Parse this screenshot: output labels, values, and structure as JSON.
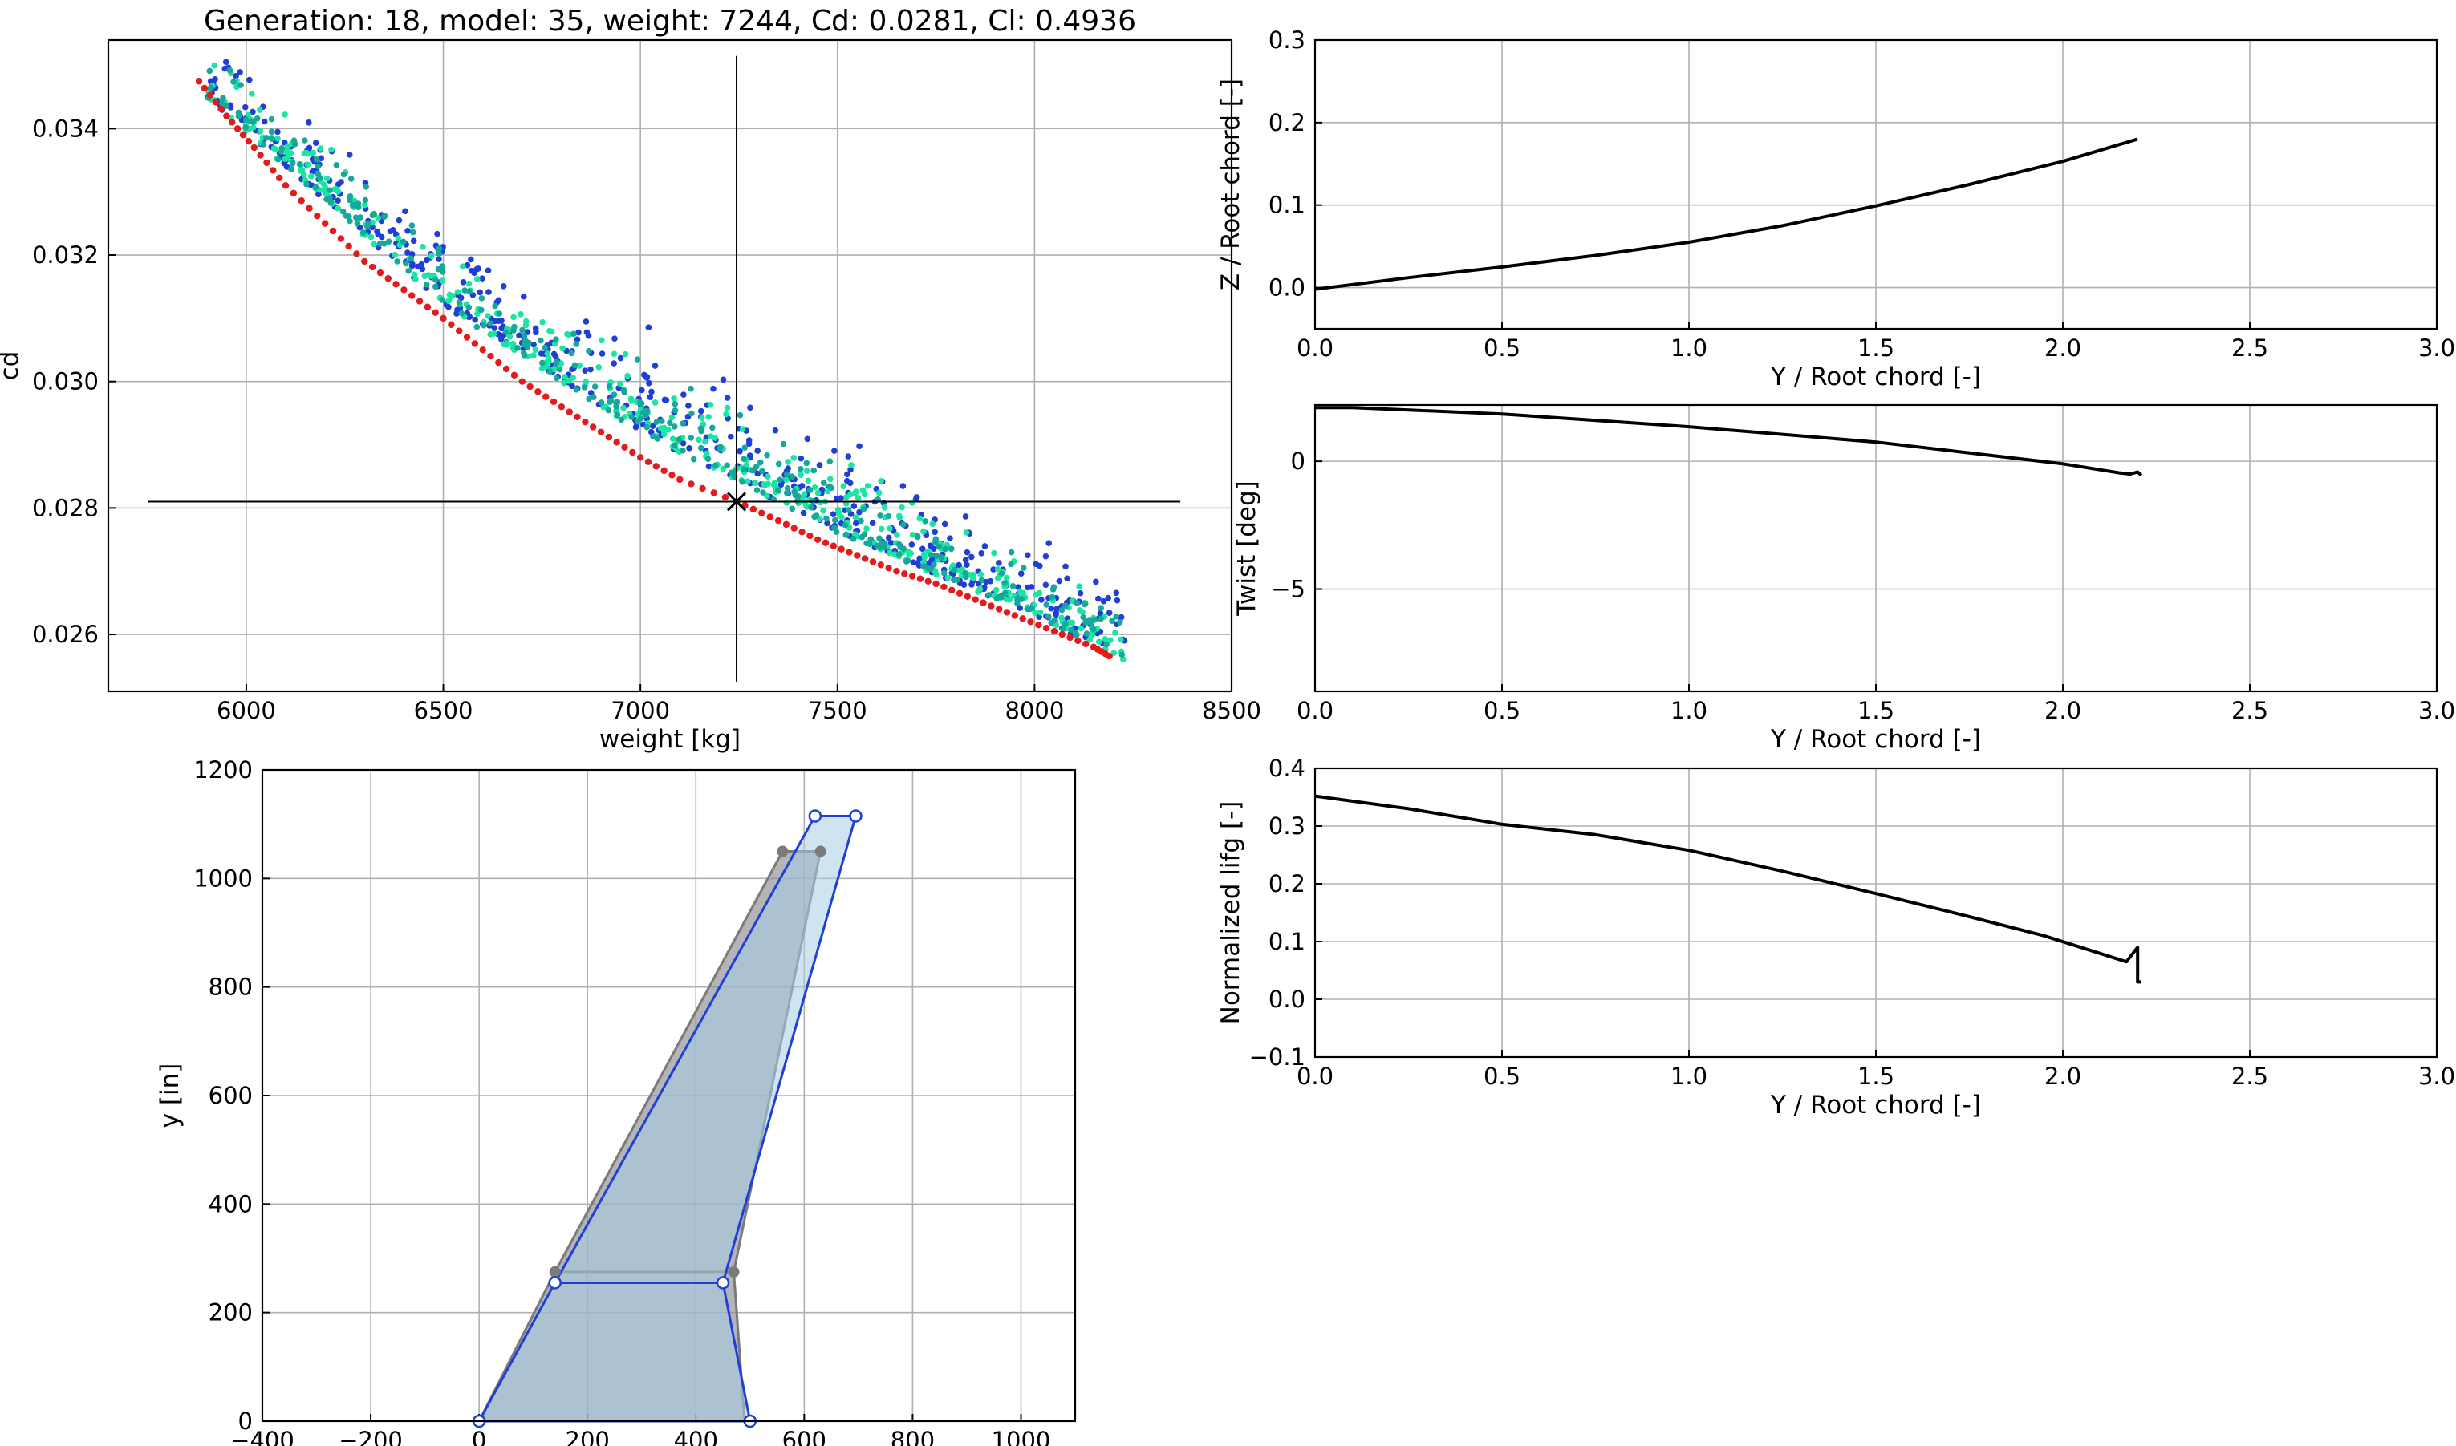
{
  "figure": {
    "title": "Generation: 18, model: 35, weight: 7244, Cd: 0.0281, Cl: 0.4936"
  },
  "chart_data": [
    {
      "id": "pareto",
      "type": "scatter",
      "title": "Generation: 18, model: 35, weight: 7244, Cd: 0.0281, Cl: 0.4936",
      "xlabel": "weight [kg]",
      "ylabel": "cd",
      "xlim": [
        5650,
        8500
      ],
      "ylim": [
        0.0251,
        0.0354
      ],
      "xticks": [
        6000,
        6500,
        7000,
        7500,
        8000,
        8500
      ],
      "yticks": [
        0.026,
        0.028,
        0.03,
        0.032,
        0.034
      ],
      "ytick_labels": [
        "0.026",
        "0.028",
        "0.030",
        "0.032",
        "0.034"
      ],
      "grid": true,
      "colors": {
        "front": "#e41a1c",
        "dominated_old": "#1f3fd6",
        "dominated_new": "#19e6a0"
      },
      "front_points": [
        [
          5880,
          0.03475
        ],
        [
          5950,
          0.0342
        ],
        [
          6020,
          0.0337
        ],
        [
          6100,
          0.0331
        ],
        [
          6200,
          0.0325
        ],
        [
          6300,
          0.0319
        ],
        [
          6400,
          0.03145
        ],
        [
          6500,
          0.031
        ],
        [
          6600,
          0.0305
        ],
        [
          6700,
          0.03
        ],
        [
          6800,
          0.0296
        ],
        [
          6900,
          0.0292
        ],
        [
          7000,
          0.0288
        ],
        [
          7100,
          0.02845
        ],
        [
          7244,
          0.0281
        ],
        [
          7350,
          0.0278
        ],
        [
          7450,
          0.0275
        ],
        [
          7550,
          0.02725
        ],
        [
          7650,
          0.027
        ],
        [
          7750,
          0.0268
        ],
        [
          7850,
          0.02655
        ],
        [
          7950,
          0.0263
        ],
        [
          8050,
          0.02605
        ],
        [
          8150,
          0.0258
        ],
        [
          8200,
          0.02562
        ]
      ],
      "cloud": {
        "band_center": [
          [
            5880,
            0.0347
          ],
          [
            6500,
            0.0313
          ],
          [
            7000,
            0.0293
          ],
          [
            7500,
            0.0277
          ],
          [
            8000,
            0.0264
          ],
          [
            8240,
            0.02565
          ]
        ],
        "band_width": 0.0015,
        "series": [
          {
            "color": "#1f3fd6",
            "count": 480
          },
          {
            "color": "#19e6a0",
            "count": 400
          },
          {
            "color": "#17a89a",
            "count": 320
          }
        ]
      },
      "selected": {
        "weight": 7244,
        "cd": 0.0281
      },
      "crosshair": {
        "x_range": [
          5750,
          8370
        ],
        "y_range": [
          0.02525,
          0.03515
        ]
      }
    },
    {
      "id": "dihedral",
      "type": "line",
      "xlabel": "Y / Root chord [-]",
      "ylabel": "Z / Root chord [-]",
      "xlim": [
        0,
        3.0
      ],
      "ylim": [
        -0.05,
        0.3
      ],
      "xticks": [
        0.0,
        0.5,
        1.0,
        1.5,
        2.0,
        2.5,
        3.0
      ],
      "xtick_labels": [
        "0.0",
        "0.5",
        "1.0",
        "1.5",
        "2.0",
        "2.5",
        "3.0"
      ],
      "yticks": [
        0.0,
        0.1,
        0.2,
        0.3
      ],
      "ytick_labels": [
        "0.0",
        "0.1",
        "0.2",
        "0.3"
      ],
      "grid": true,
      "series": [
        {
          "x": [
            0.0,
            0.25,
            0.5,
            0.75,
            1.0,
            1.25,
            1.5,
            1.75,
            2.0,
            2.2
          ],
          "y": [
            -0.002,
            0.012,
            0.025,
            0.039,
            0.055,
            0.075,
            0.099,
            0.125,
            0.153,
            0.18
          ]
        }
      ]
    },
    {
      "id": "twist",
      "type": "line",
      "xlabel": "Y / Root chord [-]",
      "ylabel": "Twist [deg]",
      "xlim": [
        0,
        3.0
      ],
      "ylim": [
        -9,
        2.2
      ],
      "xticks": [
        0.0,
        0.5,
        1.0,
        1.5,
        2.0,
        2.5,
        3.0
      ],
      "xtick_labels": [
        "0.0",
        "0.5",
        "1.0",
        "1.5",
        "2.0",
        "2.5",
        "3.0"
      ],
      "yticks": [
        -5,
        0
      ],
      "ytick_labels": [
        "−5",
        "0"
      ],
      "grid": true,
      "series": [
        {
          "x": [
            0.0,
            0.1,
            0.5,
            1.0,
            1.5,
            2.0,
            2.15,
            2.18,
            2.2,
            2.21
          ],
          "y": [
            2.1,
            2.1,
            1.85,
            1.35,
            0.75,
            -0.1,
            -0.45,
            -0.5,
            -0.42,
            -0.55
          ]
        }
      ]
    },
    {
      "id": "lift",
      "type": "line",
      "xlabel": "Y / Root chord [-]",
      "ylabel": "Normalized lifg [-]",
      "xlim": [
        0,
        3.0
      ],
      "ylim": [
        -0.1,
        0.4
      ],
      "xticks": [
        0.0,
        0.5,
        1.0,
        1.5,
        2.0,
        2.5,
        3.0
      ],
      "xtick_labels": [
        "0.0",
        "0.5",
        "1.0",
        "1.5",
        "2.0",
        "2.5",
        "3.0"
      ],
      "yticks": [
        -0.1,
        0.0,
        0.1,
        0.2,
        0.3,
        0.4
      ],
      "ytick_labels": [
        "−0.1",
        "0.0",
        "0.1",
        "0.2",
        "0.3",
        "0.4"
      ],
      "grid": true,
      "series": [
        {
          "x": [
            0.0,
            0.25,
            0.5,
            0.75,
            1.0,
            1.25,
            1.5,
            1.75,
            1.95,
            2.17,
            2.2,
            2.2,
            2.21
          ],
          "y": [
            0.352,
            0.33,
            0.303,
            0.285,
            0.258,
            0.222,
            0.183,
            0.143,
            0.11,
            0.065,
            0.09,
            0.03,
            0.03
          ]
        }
      ]
    },
    {
      "id": "planform",
      "type": "area",
      "ylabel": "y [in]",
      "xlim": [
        -400,
        1100
      ],
      "ylim": [
        0,
        1200
      ],
      "xticks": [
        -400,
        -200,
        0,
        200,
        400,
        600,
        800,
        1000
      ],
      "xtick_labels": [
        "−400",
        "−200",
        "0",
        "200",
        "400",
        "600",
        "800",
        "1000"
      ],
      "yticks": [
        0,
        200,
        400,
        600,
        800,
        1000,
        1200
      ],
      "ytick_labels": [
        "0",
        "200",
        "400",
        "600",
        "800",
        "1000",
        "1200"
      ],
      "grid": true,
      "colors": {
        "baseline": "#7a7a7a",
        "baseline_fill": "#8c8c94",
        "candidate": "#1f3fd6",
        "candidate_fill": "#a8cde3"
      },
      "baseline": [
        [
          0,
          0
        ],
        [
          140,
          275
        ],
        [
          560,
          1050
        ],
        [
          630,
          1050
        ],
        [
          470,
          275
        ],
        [
          490,
          0
        ]
      ],
      "candidate": [
        [
          0,
          0
        ],
        [
          140,
          255
        ],
        [
          450,
          255
        ],
        [
          620,
          1115
        ],
        [
          695,
          1115
        ],
        [
          450,
          255
        ],
        [
          500,
          0
        ]
      ]
    }
  ]
}
